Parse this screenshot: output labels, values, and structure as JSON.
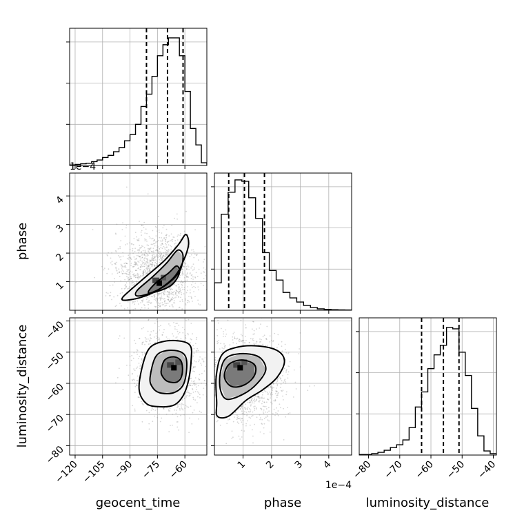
{
  "chart_data": {
    "type": "corner",
    "parameters": [
      {
        "name": "geocent_time",
        "label": "geocent_time",
        "range": [
          -123,
          -48
        ],
        "ticks": [
          -120,
          -105,
          -90,
          -75,
          -60
        ],
        "tick_labels": [
          "−120",
          "−105",
          "−90",
          "−75",
          "−60"
        ],
        "quantiles": [
          -81,
          -69.5,
          -61
        ],
        "hist": {
          "bin_edges": [
            -123,
            -120,
            -117,
            -114,
            -111,
            -108,
            -105,
            -102,
            -99,
            -96,
            -93,
            -90,
            -87,
            -84,
            -81,
            -78,
            -75,
            -72,
            -69,
            -66,
            -63,
            -60,
            -57,
            -54,
            -51,
            -48
          ],
          "counts": [
            0.004,
            0.008,
            0.012,
            0.016,
            0.028,
            0.04,
            0.058,
            0.074,
            0.1,
            0.13,
            0.18,
            0.225,
            0.3,
            0.43,
            0.52,
            0.65,
            0.8,
            0.88,
            0.93,
            0.93,
            0.8,
            0.54,
            0.27,
            0.15,
            0.02
          ]
        }
      },
      {
        "name": "phase",
        "label": "phase",
        "range": [
          0,
          4.8
        ],
        "ticks": [
          1,
          2,
          3,
          4
        ],
        "tick_labels": [
          "1",
          "2",
          "3",
          "4"
        ],
        "offset_text": "1e−4",
        "quantiles": [
          0.5,
          1.05,
          1.75
        ],
        "hist": {
          "bin_edges": [
            0,
            0.24,
            0.48,
            0.72,
            0.96,
            1.2,
            1.44,
            1.68,
            1.92,
            2.16,
            2.4,
            2.64,
            2.88,
            3.12,
            3.36,
            3.6,
            3.84,
            4.08,
            4.32,
            4.56,
            4.8
          ],
          "counts": [
            0.2,
            0.7,
            0.86,
            0.95,
            0.94,
            0.82,
            0.67,
            0.42,
            0.29,
            0.22,
            0.13,
            0.09,
            0.06,
            0.035,
            0.02,
            0.01,
            0.006,
            0.004,
            0.003,
            0.002
          ]
        }
      },
      {
        "name": "luminosity_distance",
        "label": "luminosity_distance",
        "range": [
          -83,
          -39
        ],
        "ticks": [
          -80,
          -70,
          -60,
          -50,
          -40
        ],
        "tick_labels": [
          "−80",
          "−70",
          "−60",
          "−50",
          "−40"
        ],
        "quantiles": [
          -63,
          -56,
          -51
        ],
        "hist": {
          "bin_edges": [
            -83,
            -81,
            -79,
            -77,
            -75,
            -73,
            -71,
            -69,
            -67,
            -65,
            -63,
            -61,
            -59,
            -57,
            -55,
            -53,
            -51,
            -49,
            -47,
            -45,
            -43,
            -41,
            -39
          ],
          "counts": [
            0.004,
            0.004,
            0.01,
            0.02,
            0.035,
            0.055,
            0.075,
            0.11,
            0.2,
            0.35,
            0.46,
            0.63,
            0.73,
            0.8,
            0.93,
            0.92,
            0.75,
            0.58,
            0.34,
            0.14,
            0.03,
            0.01
          ]
        }
      }
    ],
    "pairs": [
      {
        "x": "geocent_time",
        "y": "phase",
        "center": [
          -74,
          0.95
        ],
        "contours": [
          [
            [
              -93,
              0.35
            ],
            [
              -84,
              0.45
            ],
            [
              -75,
              0.7
            ],
            [
              -66,
              1.15
            ],
            [
              -61,
              1.7
            ],
            [
              -58,
              2.3
            ],
            [
              -59.5,
              2.65
            ],
            [
              -63.5,
              2.3
            ],
            [
              -71,
              1.75
            ],
            [
              -80,
              1.25
            ],
            [
              -89,
              0.75
            ],
            [
              -94,
              0.45
            ]
          ],
          [
            [
              -86,
              0.5
            ],
            [
              -78,
              0.62
            ],
            [
              -70,
              0.9
            ],
            [
              -63,
              1.35
            ],
            [
              -61,
              1.9
            ],
            [
              -64,
              2.1
            ],
            [
              -70,
              1.65
            ],
            [
              -78,
              1.15
            ],
            [
              -86,
              0.7
            ]
          ],
          [
            [
              -80,
              0.62
            ],
            [
              -74,
              0.68
            ],
            [
              -67,
              0.9
            ],
            [
              -63,
              1.3
            ],
            [
              -64.5,
              1.55
            ],
            [
              -69,
              1.3
            ],
            [
              -76,
              0.95
            ]
          ]
        ]
      },
      {
        "x": "geocent_time",
        "y": "luminosity_distance",
        "center": [
          -66,
          -55
        ],
        "contours": [
          [
            [
              -85,
              -62
            ],
            [
              -83,
              -54
            ],
            [
              -79,
              -48.5
            ],
            [
              -71,
              -46.5
            ],
            [
              -62,
              -46.5
            ],
            [
              -57,
              -48
            ],
            [
              -56.5,
              -52
            ],
            [
              -58,
              -59
            ],
            [
              -61,
              -64
            ],
            [
              -66,
              -67
            ],
            [
              -74,
              -67.5
            ],
            [
              -81,
              -66.5
            ]
          ],
          [
            [
              -79,
              -58
            ],
            [
              -76,
              -51.5
            ],
            [
              -70,
              -49.5
            ],
            [
              -62,
              -50
            ],
            [
              -59,
              -53
            ],
            [
              -60.5,
              -60
            ],
            [
              -66,
              -63
            ],
            [
              -74,
              -63
            ],
            [
              -78,
              -61
            ]
          ],
          [
            [
              -73,
              -56
            ],
            [
              -71,
              -52.5
            ],
            [
              -66,
              -51.5
            ],
            [
              -62,
              -53
            ],
            [
              -61.5,
              -57
            ],
            [
              -64,
              -59.5
            ],
            [
              -69,
              -59.5
            ],
            [
              -72,
              -58
            ]
          ]
        ]
      },
      {
        "x": "phase",
        "y": "luminosity_distance",
        "center": [
          0.9,
          -55
        ],
        "contours": [
          [
            [
              0.08,
              -66
            ],
            [
              0.06,
              -58
            ],
            [
              0.25,
              -51
            ],
            [
              0.75,
              -48.5
            ],
            [
              1.5,
              -48
            ],
            [
              2.2,
              -49.5
            ],
            [
              2.45,
              -53
            ],
            [
              2.2,
              -58
            ],
            [
              1.7,
              -62
            ],
            [
              1.1,
              -65.5
            ],
            [
              0.5,
              -70.5
            ],
            [
              0.1,
              -70.5
            ]
          ],
          [
            [
              0.18,
              -60
            ],
            [
              0.35,
              -52.5
            ],
            [
              0.9,
              -50.5
            ],
            [
              1.55,
              -51.5
            ],
            [
              1.8,
              -55.5
            ],
            [
              1.5,
              -60
            ],
            [
              1.0,
              -63.5
            ],
            [
              0.4,
              -65
            ]
          ],
          [
            [
              0.35,
              -58
            ],
            [
              0.5,
              -54
            ],
            [
              0.95,
              -52.5
            ],
            [
              1.4,
              -54
            ],
            [
              1.4,
              -57.5
            ],
            [
              1.05,
              -60.5
            ],
            [
              0.6,
              -61
            ]
          ]
        ]
      }
    ],
    "grid": true
  }
}
